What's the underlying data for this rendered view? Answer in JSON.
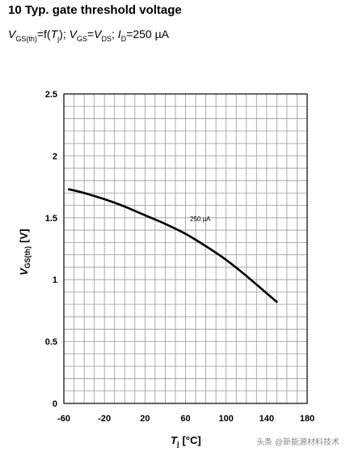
{
  "title": "10 Typ. gate threshold voltage",
  "subtitle": {
    "p1": "V",
    "p1sub": "GS(th)",
    "p2": "=f(",
    "p3": "T",
    "p3sub": "j",
    "p4": ");",
    "p5": "V",
    "p5sub": "GS",
    "p6": "=",
    "p7": "V",
    "p7sub": "DS",
    "p8": ";",
    "p9": "I",
    "p9sub": "D",
    "p10": "=250 µA"
  },
  "chart_data": {
    "type": "line",
    "x": [
      -55,
      -40,
      -20,
      0,
      20,
      40,
      60,
      80,
      100,
      120,
      150
    ],
    "series": [
      {
        "name": "250 µA",
        "values": [
          1.73,
          1.7,
          1.65,
          1.59,
          1.52,
          1.45,
          1.37,
          1.27,
          1.16,
          1.03,
          0.82
        ]
      }
    ],
    "xlim": [
      -60,
      180
    ],
    "ylim": [
      0,
      2.5
    ],
    "xticks": [
      -60,
      -20,
      20,
      60,
      100,
      140,
      180
    ],
    "xtick_labels": [
      "-60",
      "-20",
      "20",
      "60",
      "100",
      "140",
      "180"
    ],
    "yticks": [
      0,
      0.5,
      1,
      1.5,
      2,
      2.5
    ],
    "ytick_labels": [
      "0",
      "0.5",
      "1",
      "1.5",
      "2",
      "2.5"
    ],
    "xlabel": "T",
    "xlabel_sub": "j",
    "xlabel_unit": "[°C]",
    "ylabel": "V",
    "ylabel_sub": "GS(th)",
    "ylabel_unit": "[V]",
    "grid": true,
    "line_color": "#000000",
    "grid_color": "#999999"
  },
  "watermark": "头条 @新能源材料技术"
}
